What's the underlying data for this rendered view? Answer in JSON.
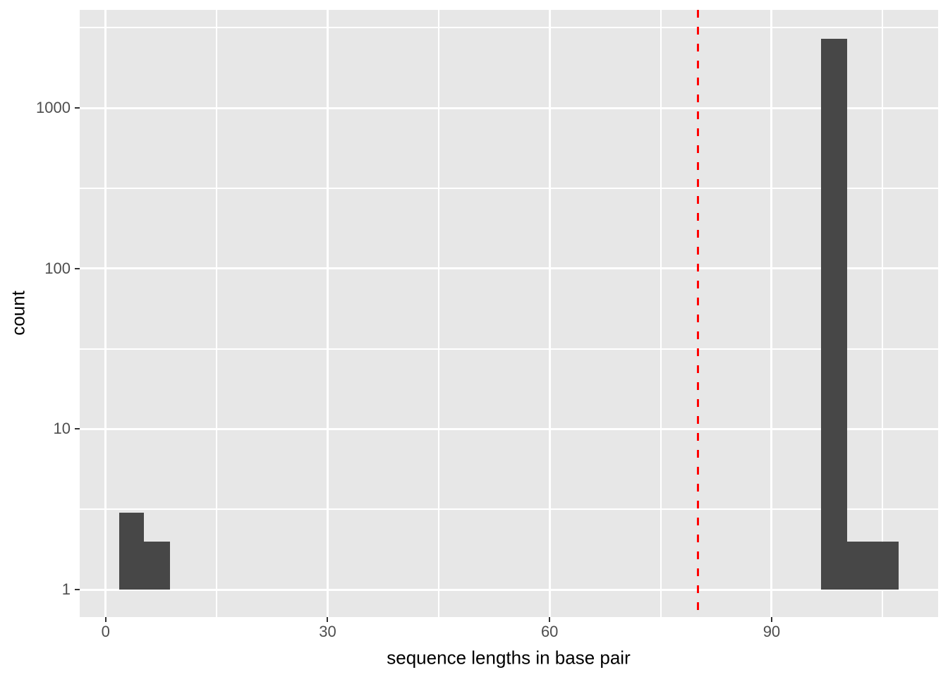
{
  "chart_data": {
    "type": "bar",
    "subtype": "histogram",
    "title": "",
    "xlabel": "sequence lengths in base pair",
    "ylabel": "count",
    "y_scale": "log10",
    "grid": true,
    "legend": false,
    "xlim": [
      -3.5,
      112.5
    ],
    "ylim_log10": [
      -0.171,
      3.611
    ],
    "x_ticks": [
      0,
      30,
      60,
      90
    ],
    "x_tick_labels": [
      "0",
      "30",
      "60",
      "90"
    ],
    "x_minor_ticks": [
      15,
      45,
      75,
      105
    ],
    "y_ticks": [
      1,
      10,
      100,
      1000
    ],
    "y_tick_labels": [
      "1",
      "10",
      "100",
      "1000"
    ],
    "y_minor_ticks_log10": [
      0.5,
      1.5,
      2.5,
      3.5
    ],
    "bar_baseline": 1,
    "bins": [
      {
        "x0": 1.8,
        "x1": 5.2,
        "count": 3
      },
      {
        "x0": 5.2,
        "x1": 8.7,
        "count": 2
      },
      {
        "x0": 96.7,
        "x1": 100.2,
        "count": 2700
      },
      {
        "x0": 100.2,
        "x1": 107.2,
        "count": 2
      }
    ],
    "vline": {
      "x": 80,
      "style": "dashed",
      "color": "#FF0000"
    },
    "colors": {
      "bar": "#474747",
      "panel_background": "#E7E7E7",
      "gridline": "#FFFFFF",
      "tick_label": "#4D4D4D",
      "axis_title": "#000000",
      "tick_mark": "#333333",
      "threshold_line": "#FF0000"
    }
  }
}
